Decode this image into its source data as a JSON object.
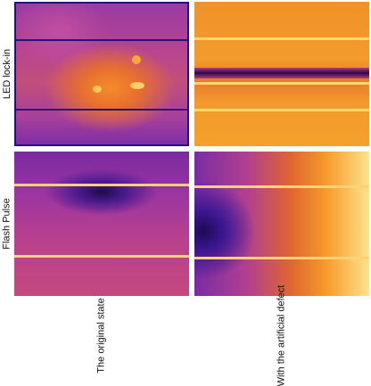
{
  "rows": {
    "top_label": "LED lock-in",
    "bottom_label": "Flash Pulse"
  },
  "columns": {
    "left_label": "The original state",
    "right_label": "With the artificial defect"
  }
}
